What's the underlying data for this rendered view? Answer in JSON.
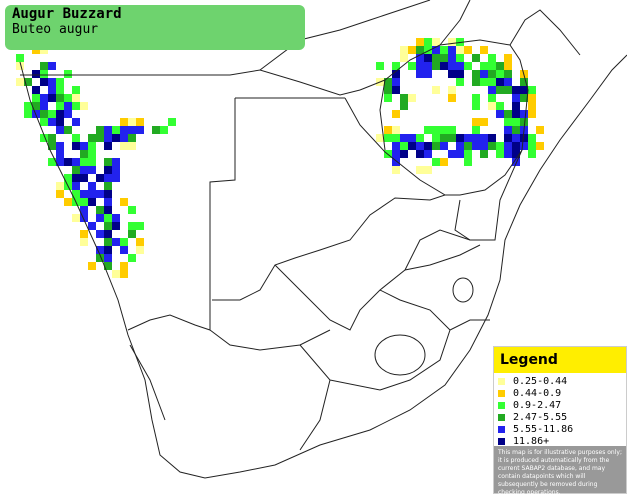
{
  "header": {
    "title": "Augur Buzzard",
    "subtitle": "Buteo augur"
  },
  "legend": {
    "title": "Legend",
    "items": [
      {
        "label": "0.25-0.44",
        "color": "#ffff99"
      },
      {
        "label": "0.44-0.9",
        "color": "#ffcc00"
      },
      {
        "label": "0.9-2.47",
        "color": "#33ff33"
      },
      {
        "label": "2.47-5.55",
        "color": "#22aa22"
      },
      {
        "label": "5.55-11.86",
        "color": "#2222ee"
      },
      {
        "label": "11.86+",
        "color": "#000088"
      }
    ],
    "disclaimer": "This map is for illustrative purposes only; it is produced automatically from the current SABAP2 database, and may contain datapoints which will subsequently be removed during checking operations."
  }
}
